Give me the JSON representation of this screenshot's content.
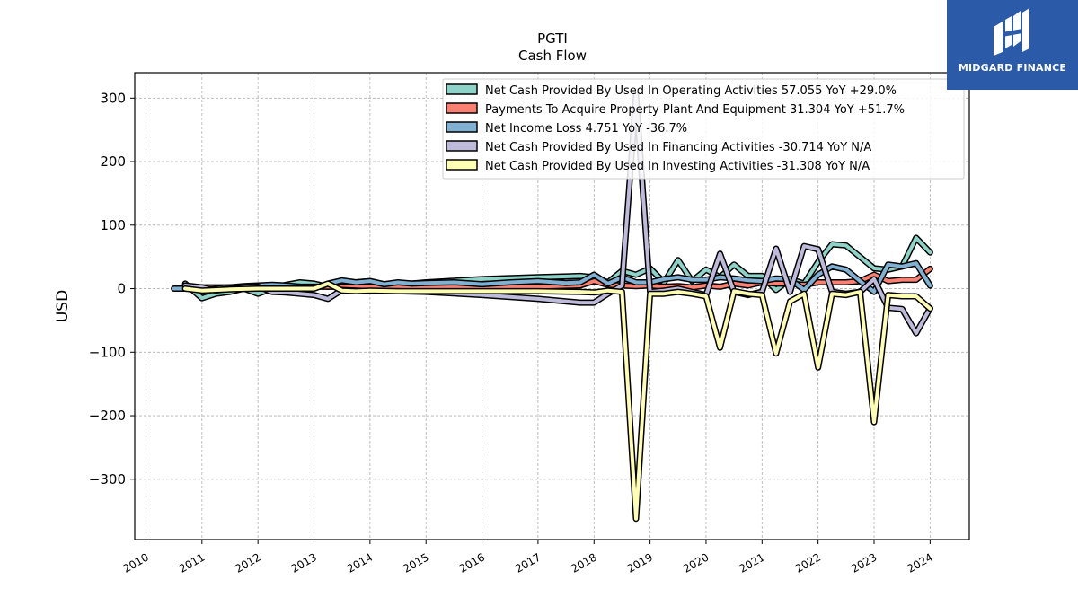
{
  "logo": {
    "text": "MIDGARD FINANCE",
    "icon": "mf-monogram-icon",
    "color": "#2a5aa8"
  },
  "chart_data": {
    "type": "line",
    "title": "PGTI",
    "subtitle": "Cash Flow",
    "xlabel": "",
    "ylabel": "USD",
    "xlim": [
      2009.8,
      2024.7
    ],
    "ylim": [
      -395,
      340
    ],
    "x_ticks": [
      "2010",
      "2011",
      "2012",
      "2013",
      "2014",
      "2015",
      "2016",
      "2017",
      "2018",
      "2019",
      "2020",
      "2021",
      "2022",
      "2023",
      "2024"
    ],
    "y_ticks": [
      -300,
      -200,
      -100,
      0,
      100,
      200,
      300
    ],
    "y_tick_labels": [
      "−300",
      "−200",
      "−100",
      "0",
      "100",
      "200",
      "300"
    ],
    "grid": true,
    "legend_position": "top-right",
    "series": [
      {
        "name": "Net Cash Provided By Used In Operating Activities",
        "legend_label": "Net Cash Provided By Used In Operating Activities  57.055 YoY +29.0%",
        "color": "#8dd3c7",
        "points": [
          [
            2010.7,
            8
          ],
          [
            2011.0,
            -15
          ],
          [
            2011.25,
            -8
          ],
          [
            2011.5,
            -5
          ],
          [
            2011.75,
            0
          ],
          [
            2012.0,
            -8
          ],
          [
            2012.25,
            0
          ],
          [
            2012.5,
            6
          ],
          [
            2012.75,
            10
          ],
          [
            2013.0,
            8
          ],
          [
            2013.25,
            3
          ],
          [
            2013.5,
            8
          ],
          [
            2013.75,
            10
          ],
          [
            2014.0,
            12
          ],
          [
            2014.25,
            6
          ],
          [
            2014.5,
            8
          ],
          [
            2014.75,
            8
          ],
          [
            2015.0,
            10
          ],
          [
            2016.0,
            15
          ],
          [
            2017.0,
            18
          ],
          [
            2017.75,
            20
          ],
          [
            2018.0,
            18
          ],
          [
            2018.25,
            10
          ],
          [
            2018.5,
            28
          ],
          [
            2018.75,
            22
          ],
          [
            2019.0,
            32
          ],
          [
            2019.25,
            10
          ],
          [
            2019.5,
            45
          ],
          [
            2019.75,
            12
          ],
          [
            2020.0,
            30
          ],
          [
            2020.25,
            18
          ],
          [
            2020.5,
            38
          ],
          [
            2020.75,
            20
          ],
          [
            2021.0,
            20
          ],
          [
            2021.25,
            -2
          ],
          [
            2021.5,
            15
          ],
          [
            2021.75,
            8
          ],
          [
            2022.0,
            42
          ],
          [
            2022.25,
            70
          ],
          [
            2022.5,
            68
          ],
          [
            2022.75,
            50
          ],
          [
            2023.0,
            32
          ],
          [
            2023.25,
            30
          ],
          [
            2023.5,
            35
          ],
          [
            2023.75,
            80
          ],
          [
            2024.0,
            57.055
          ]
        ]
      },
      {
        "name": "Payments To Acquire Property Plant And Equipment",
        "legend_label": "Payments To Acquire Property Plant And Equipment  31.304 YoY +51.7%",
        "color": "#fb8072",
        "points": [
          [
            2010.7,
            3
          ],
          [
            2011.0,
            2
          ],
          [
            2011.5,
            2
          ],
          [
            2012.0,
            3
          ],
          [
            2012.5,
            3
          ],
          [
            2013.0,
            3
          ],
          [
            2013.5,
            3
          ],
          [
            2014.0,
            3
          ],
          [
            2015.0,
            3
          ],
          [
            2016.0,
            3
          ],
          [
            2017.0,
            3
          ],
          [
            2017.75,
            5
          ],
          [
            2018.0,
            12
          ],
          [
            2018.25,
            6
          ],
          [
            2018.5,
            5
          ],
          [
            2018.75,
            4
          ],
          [
            2019.0,
            5
          ],
          [
            2019.25,
            3
          ],
          [
            2019.5,
            4
          ],
          [
            2019.75,
            2
          ],
          [
            2020.0,
            5
          ],
          [
            2020.25,
            3
          ],
          [
            2020.5,
            8
          ],
          [
            2020.75,
            5
          ],
          [
            2021.0,
            10
          ],
          [
            2021.25,
            8
          ],
          [
            2021.5,
            8
          ],
          [
            2021.75,
            6
          ],
          [
            2022.0,
            10
          ],
          [
            2022.25,
            10
          ],
          [
            2022.5,
            10
          ],
          [
            2022.75,
            12
          ],
          [
            2023.0,
            22
          ],
          [
            2023.25,
            12
          ],
          [
            2023.5,
            14
          ],
          [
            2023.75,
            14
          ],
          [
            2024.0,
            31.304
          ]
        ]
      },
      {
        "name": "Net Income Loss",
        "legend_label": "Net Income Loss  4.751 YoY -36.7%",
        "color": "#80b1d3",
        "points": [
          [
            2010.5,
            0
          ],
          [
            2010.75,
            0
          ],
          [
            2011.0,
            -2
          ],
          [
            2011.25,
            0
          ],
          [
            2011.5,
            2
          ],
          [
            2011.75,
            4
          ],
          [
            2012.0,
            5
          ],
          [
            2012.25,
            6
          ],
          [
            2012.5,
            5
          ],
          [
            2012.75,
            3
          ],
          [
            2013.0,
            0
          ],
          [
            2013.25,
            8
          ],
          [
            2013.5,
            13
          ],
          [
            2013.75,
            10
          ],
          [
            2014.0,
            12
          ],
          [
            2014.25,
            7
          ],
          [
            2014.5,
            10
          ],
          [
            2014.75,
            8
          ],
          [
            2015.0,
            9
          ],
          [
            2015.5,
            10
          ],
          [
            2016.0,
            7
          ],
          [
            2016.5,
            10
          ],
          [
            2017.0,
            12
          ],
          [
            2017.5,
            9
          ],
          [
            2017.75,
            10
          ],
          [
            2018.0,
            22
          ],
          [
            2018.25,
            8
          ],
          [
            2018.5,
            18
          ],
          [
            2018.75,
            10
          ],
          [
            2019.0,
            10
          ],
          [
            2019.25,
            15
          ],
          [
            2019.5,
            18
          ],
          [
            2019.75,
            14
          ],
          [
            2020.0,
            14
          ],
          [
            2020.25,
            18
          ],
          [
            2020.5,
            16
          ],
          [
            2020.75,
            13
          ],
          [
            2021.0,
            12
          ],
          [
            2021.25,
            16
          ],
          [
            2021.5,
            15
          ],
          [
            2021.75,
            -2
          ],
          [
            2022.0,
            22
          ],
          [
            2022.25,
            35
          ],
          [
            2022.5,
            30
          ],
          [
            2022.75,
            12
          ],
          [
            2023.0,
            -5
          ],
          [
            2023.25,
            38
          ],
          [
            2023.5,
            35
          ],
          [
            2023.75,
            40
          ],
          [
            2024.0,
            4.751
          ]
        ]
      },
      {
        "name": "Net Cash Provided By Used In Financing Activities",
        "legend_label": "Net Cash Provided By Used In Financing Activities  -30.714 YoY N/A",
        "color": "#bebada",
        "points": [
          [
            2010.7,
            5
          ],
          [
            2011.0,
            2
          ],
          [
            2011.25,
            -3
          ],
          [
            2011.5,
            0
          ],
          [
            2011.75,
            2
          ],
          [
            2012.0,
            3
          ],
          [
            2012.25,
            -5
          ],
          [
            2012.5,
            -6
          ],
          [
            2012.75,
            -8
          ],
          [
            2013.0,
            -10
          ],
          [
            2013.25,
            -16
          ],
          [
            2013.5,
            -2
          ],
          [
            2013.75,
            -3
          ],
          [
            2014.0,
            -4
          ],
          [
            2014.5,
            -4
          ],
          [
            2015.0,
            -5
          ],
          [
            2016.0,
            -10
          ],
          [
            2017.0,
            -16
          ],
          [
            2017.75,
            -22
          ],
          [
            2018.0,
            -22
          ],
          [
            2018.25,
            -8
          ],
          [
            2018.5,
            5
          ],
          [
            2018.75,
            305
          ],
          [
            2019.0,
            -5
          ],
          [
            2019.25,
            -3
          ],
          [
            2019.5,
            0
          ],
          [
            2019.75,
            -5
          ],
          [
            2020.0,
            -10
          ],
          [
            2020.25,
            55
          ],
          [
            2020.5,
            -5
          ],
          [
            2020.75,
            -10
          ],
          [
            2021.0,
            -5
          ],
          [
            2021.25,
            63
          ],
          [
            2021.5,
            -5
          ],
          [
            2021.75,
            67
          ],
          [
            2022.0,
            62
          ],
          [
            2022.25,
            -5
          ],
          [
            2022.5,
            -8
          ],
          [
            2022.75,
            -5
          ],
          [
            2023.0,
            15
          ],
          [
            2023.25,
            -30
          ],
          [
            2023.5,
            -32
          ],
          [
            2023.75,
            -70
          ],
          [
            2024.0,
            -30.714
          ]
        ]
      },
      {
        "name": "Net Cash Provided By Used In Investing Activities",
        "legend_label": "Net Cash Provided By Used In Investing Activities  -31.308 YoY N/A",
        "color": "#ffffb3",
        "points": [
          [
            2010.7,
            0
          ],
          [
            2011.0,
            -3
          ],
          [
            2011.5,
            -1
          ],
          [
            2012.0,
            0
          ],
          [
            2012.5,
            0
          ],
          [
            2013.0,
            0
          ],
          [
            2013.25,
            8
          ],
          [
            2013.5,
            -3
          ],
          [
            2013.75,
            -4
          ],
          [
            2014.0,
            -3
          ],
          [
            2014.5,
            -4
          ],
          [
            2015.0,
            -4
          ],
          [
            2016.0,
            -4
          ],
          [
            2017.0,
            -4
          ],
          [
            2017.75,
            -5
          ],
          [
            2018.0,
            -6
          ],
          [
            2018.25,
            -3
          ],
          [
            2018.5,
            -5
          ],
          [
            2018.75,
            -362
          ],
          [
            2019.0,
            -8
          ],
          [
            2019.25,
            -8
          ],
          [
            2019.5,
            -5
          ],
          [
            2019.75,
            -8
          ],
          [
            2020.0,
            -12
          ],
          [
            2020.25,
            -93
          ],
          [
            2020.5,
            -4
          ],
          [
            2020.75,
            -8
          ],
          [
            2021.0,
            -10
          ],
          [
            2021.25,
            -102
          ],
          [
            2021.5,
            -20
          ],
          [
            2021.75,
            -8
          ],
          [
            2022.0,
            -124
          ],
          [
            2022.25,
            -8
          ],
          [
            2022.5,
            -10
          ],
          [
            2022.75,
            -5
          ],
          [
            2023.0,
            -210
          ],
          [
            2023.25,
            -10
          ],
          [
            2023.5,
            -12
          ],
          [
            2023.75,
            -12
          ],
          [
            2024.0,
            -31.308
          ]
        ]
      }
    ]
  }
}
